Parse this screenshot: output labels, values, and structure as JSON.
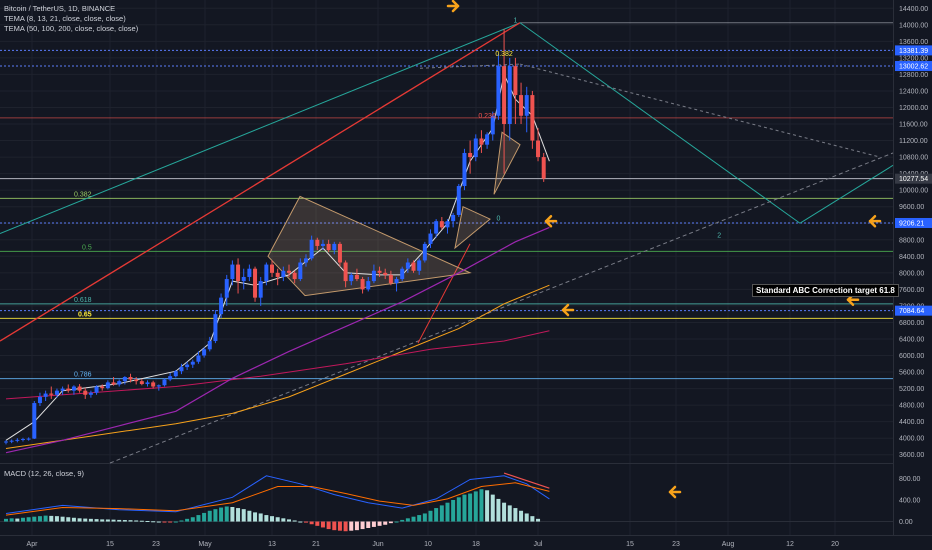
{
  "legends": {
    "title": "Bitcoin / TetherUS, 1D, BINANCE",
    "tema1": "TEMA (8, 13, 21, close, close, close)",
    "tema2": "TEMA (50, 100, 200, close, close, close)",
    "macd": "MACD (12, 26, close, 9)"
  },
  "annotation": "Standard ABC Correction target 61.8",
  "fib_levels": [
    {
      "label": "0.382",
      "price": 9800,
      "color": "#9ccc65"
    },
    {
      "label": "0.5",
      "price": 8520,
      "color": "#4caf50"
    },
    {
      "label": "0.618",
      "price": 7250,
      "color": "#4db6ac"
    },
    {
      "label": "0.65",
      "price": 6900,
      "color": "#ffeb3b"
    },
    {
      "label": "0.786",
      "price": 5440,
      "color": "#64b5f6"
    }
  ],
  "wave_labels": [
    {
      "label": "1",
      "price": 14050,
      "date_index": 90,
      "color": "#4db6ac"
    },
    {
      "label": "2",
      "price": 8850,
      "date_index": 126,
      "color": "#4db6ac"
    },
    {
      "label": "0.382",
      "price": 13250,
      "date_index": 88,
      "color": "#ffeb3b"
    },
    {
      "label": "0.236",
      "price": 11750,
      "date_index": 85,
      "color": "#ef5350"
    },
    {
      "label": "0",
      "price": 9270,
      "date_index": 87,
      "color": "#4db6ac"
    },
    {
      "label": "0.5",
      "price": 14800,
      "date_index": 88,
      "color": "#4caf50"
    }
  ],
  "price_axis": {
    "ticks": [
      "14400.00",
      "14000.00",
      "13600.00",
      "13200.00",
      "12800.00",
      "12400.00",
      "12000.00",
      "11600.00",
      "11200.00",
      "10800.00",
      "10400.00",
      "10000.00",
      "9600.00",
      "9200.00",
      "8800.00",
      "8400.00",
      "8000.00",
      "7600.00",
      "7200.00",
      "6800.00",
      "6400.00",
      "6000.00",
      "5600.00",
      "5200.00",
      "4800.00",
      "4400.00",
      "4000.00",
      "3600.00"
    ],
    "tags": [
      {
        "text": "13381.39",
        "price": 13381,
        "bg": "#2962ff"
      },
      {
        "text": "13002.62",
        "price": 13003,
        "bg": "#2962ff"
      },
      {
        "text": "10277.54",
        "price": 10278,
        "bg": "#363a45"
      },
      {
        "text": "9206.21",
        "price": 9206,
        "bg": "#2962ff"
      },
      {
        "text": "7084.64",
        "price": 7085,
        "bg": "#2962ff"
      }
    ]
  },
  "macd_axis": {
    "ticks": [
      "800.00",
      "400.00",
      "0.00"
    ]
  },
  "time_axis": {
    "ticks": [
      "Apr",
      "15",
      "23",
      "May",
      "13",
      "21",
      "Jun",
      "10",
      "18",
      "Jul",
      "15",
      "23",
      "Aug",
      "12",
      "20"
    ]
  },
  "chart_data": {
    "type": "candlestick",
    "symbol": "BTCUSDT",
    "interval": "1D",
    "exchange": "BINANCE",
    "y_range": [
      3400,
      14600
    ],
    "candles": [
      [
        3900,
        3950,
        3850,
        3920
      ],
      [
        3920,
        3970,
        3880,
        3940
      ],
      [
        3940,
        4000,
        3900,
        3960
      ],
      [
        3960,
        4010,
        3920,
        3980
      ],
      [
        3980,
        4020,
        3940,
        3990
      ],
      [
        3990,
        4900,
        3980,
        4850
      ],
      [
        4850,
        5100,
        4780,
        5000
      ],
      [
        5000,
        5150,
        4900,
        5080
      ],
      [
        5080,
        5250,
        4950,
        5050
      ],
      [
        5050,
        5200,
        4980,
        5150
      ],
      [
        5150,
        5250,
        5050,
        5200
      ],
      [
        5200,
        5300,
        5100,
        5150
      ],
      [
        5150,
        5280,
        5050,
        5250
      ],
      [
        5250,
        5310,
        5100,
        5150
      ],
      [
        5150,
        5220,
        4950,
        5050
      ],
      [
        5050,
        5150,
        4980,
        5100
      ],
      [
        5100,
        5280,
        5050,
        5250
      ],
      [
        5250,
        5300,
        5150,
        5210
      ],
      [
        5210,
        5400,
        5180,
        5350
      ],
      [
        5350,
        5480,
        5270,
        5300
      ],
      [
        5300,
        5420,
        5250,
        5380
      ],
      [
        5380,
        5500,
        5300,
        5480
      ],
      [
        5480,
        5560,
        5350,
        5420
      ],
      [
        5420,
        5480,
        5300,
        5380
      ],
      [
        5380,
        5430,
        5280,
        5310
      ],
      [
        5310,
        5400,
        5250,
        5350
      ],
      [
        5350,
        5390,
        5200,
        5250
      ],
      [
        5250,
        5300,
        5150,
        5280
      ],
      [
        5280,
        5450,
        5250,
        5420
      ],
      [
        5420,
        5580,
        5380,
        5500
      ],
      [
        5500,
        5650,
        5470,
        5620
      ],
      [
        5620,
        5800,
        5550,
        5720
      ],
      [
        5720,
        5850,
        5650,
        5780
      ],
      [
        5780,
        5900,
        5700,
        5850
      ],
      [
        5850,
        6100,
        5800,
        6000
      ],
      [
        6000,
        6200,
        5950,
        6150
      ],
      [
        6150,
        6450,
        6100,
        6350
      ],
      [
        6350,
        7100,
        6300,
        7000
      ],
      [
        7000,
        7500,
        6900,
        7400
      ],
      [
        7400,
        7950,
        7200,
        7850
      ],
      [
        7850,
        8300,
        7700,
        8200
      ],
      [
        8200,
        8350,
        7500,
        7800
      ],
      [
        7800,
        8100,
        7600,
        7900
      ],
      [
        7900,
        8200,
        7800,
        8100
      ],
      [
        8100,
        8150,
        7300,
        7400
      ],
      [
        7400,
        7900,
        7200,
        7800
      ],
      [
        7800,
        8250,
        7700,
        8200
      ],
      [
        8200,
        8300,
        7900,
        8000
      ],
      [
        8000,
        8100,
        7700,
        7900
      ],
      [
        7900,
        8150,
        7800,
        8050
      ],
      [
        8050,
        8200,
        7900,
        8000
      ],
      [
        8000,
        8050,
        7750,
        7850
      ],
      [
        7850,
        8350,
        7800,
        8250
      ],
      [
        8250,
        8450,
        8150,
        8350
      ],
      [
        8350,
        8900,
        8300,
        8800
      ],
      [
        8800,
        8850,
        8550,
        8650
      ],
      [
        8650,
        8800,
        8550,
        8700
      ],
      [
        8700,
        8800,
        8500,
        8550
      ],
      [
        8550,
        8750,
        8450,
        8700
      ],
      [
        8700,
        8750,
        8150,
        8250
      ],
      [
        8250,
        8300,
        7650,
        7800
      ],
      [
        7800,
        8000,
        7700,
        7950
      ],
      [
        7950,
        8100,
        7800,
        7850
      ],
      [
        7850,
        7900,
        7500,
        7600
      ],
      [
        7600,
        7900,
        7550,
        7800
      ],
      [
        7800,
        8200,
        7750,
        8050
      ],
      [
        8050,
        8150,
        7900,
        8000
      ],
      [
        8000,
        8100,
        7850,
        7950
      ],
      [
        7950,
        8050,
        7700,
        7750
      ],
      [
        7750,
        7900,
        7550,
        7850
      ],
      [
        7850,
        8150,
        7800,
        8100
      ],
      [
        8100,
        8350,
        8000,
        8250
      ],
      [
        8250,
        8300,
        8000,
        8050
      ],
      [
        8050,
        8350,
        7950,
        8300
      ],
      [
        8300,
        8750,
        8250,
        8700
      ],
      [
        8700,
        9050,
        8600,
        8950
      ],
      [
        8950,
        9300,
        8850,
        9250
      ],
      [
        9250,
        9350,
        9050,
        9100
      ],
      [
        9100,
        9300,
        8950,
        9250
      ],
      [
        9250,
        9450,
        9100,
        9400
      ],
      [
        9400,
        10150,
        9350,
        10100
      ],
      [
        10100,
        11000,
        10000,
        10900
      ],
      [
        10900,
        11200,
        10400,
        10800
      ],
      [
        10800,
        11350,
        10700,
        11250
      ],
      [
        11250,
        11450,
        10900,
        11100
      ],
      [
        11100,
        11400,
        11000,
        11350
      ],
      [
        11350,
        11900,
        11200,
        11800
      ],
      [
        11800,
        13300,
        11700,
        13000
      ],
      [
        13000,
        13900,
        10400,
        11600
      ],
      [
        11600,
        13200,
        11200,
        13000
      ],
      [
        13000,
        13200,
        11600,
        12300
      ],
      [
        12300,
        12600,
        11600,
        11800
      ],
      [
        11800,
        12500,
        11400,
        12300
      ],
      [
        12300,
        12400,
        11000,
        11200
      ],
      [
        11200,
        11500,
        10700,
        10800
      ],
      [
        10800,
        10900,
        10200,
        10280
      ]
    ],
    "tema_fast": [
      [
        0,
        3950
      ],
      [
        5,
        4400
      ],
      [
        10,
        5150
      ],
      [
        20,
        5320
      ],
      [
        30,
        5620
      ],
      [
        36,
        6300
      ],
      [
        40,
        7800
      ],
      [
        44,
        7700
      ],
      [
        50,
        7950
      ],
      [
        56,
        8600
      ],
      [
        60,
        8000
      ],
      [
        66,
        7950
      ],
      [
        70,
        7950
      ],
      [
        74,
        8550
      ],
      [
        78,
        9200
      ],
      [
        82,
        10700
      ],
      [
        86,
        11500
      ],
      [
        88,
        12800
      ],
      [
        90,
        12200
      ],
      [
        93,
        11800
      ],
      [
        96,
        10700
      ]
    ],
    "tema_slow": [
      [
        0,
        3650
      ],
      [
        10,
        3950
      ],
      [
        20,
        4300
      ],
      [
        30,
        4650
      ],
      [
        40,
        5450
      ],
      [
        50,
        6100
      ],
      [
        60,
        6700
      ],
      [
        70,
        7300
      ],
      [
        80,
        8000
      ],
      [
        90,
        8750
      ],
      [
        96,
        9100
      ]
    ],
    "ma_lines": [
      {
        "name": "orange",
        "color": "#f7a21b",
        "points": [
          [
            0,
            3750
          ],
          [
            15,
            4050
          ],
          [
            30,
            4350
          ],
          [
            40,
            4600
          ],
          [
            50,
            5000
          ],
          [
            60,
            5550
          ],
          [
            70,
            6100
          ],
          [
            80,
            6650
          ],
          [
            88,
            7250
          ],
          [
            96,
            7700
          ]
        ]
      },
      {
        "name": "red",
        "color": "#c2185b",
        "points": [
          [
            0,
            4950
          ],
          [
            15,
            5100
          ],
          [
            30,
            5250
          ],
          [
            45,
            5500
          ],
          [
            60,
            5800
          ],
          [
            75,
            6150
          ],
          [
            88,
            6350
          ],
          [
            96,
            6600
          ]
        ]
      }
    ],
    "macd": {
      "range": [
        -250,
        1050
      ],
      "histogram": [
        50,
        60,
        55,
        70,
        80,
        90,
        100,
        110,
        105,
        100,
        90,
        80,
        70,
        60,
        55,
        50,
        45,
        40,
        38,
        35,
        30,
        28,
        25,
        20,
        15,
        10,
        5,
        0,
        -5,
        -10,
        0,
        20,
        50,
        80,
        120,
        160,
        200,
        230,
        260,
        280,
        270,
        250,
        230,
        200,
        170,
        150,
        120,
        100,
        80,
        60,
        40,
        20,
        0,
        -20,
        -50,
        -80,
        -110,
        -140,
        -160,
        -170,
        -180,
        -170,
        -160,
        -140,
        -120,
        -100,
        -80,
        -60,
        -30,
        0,
        30,
        60,
        90,
        120,
        150,
        200,
        250,
        300,
        350,
        400,
        450,
        500,
        520,
        560,
        600,
        580,
        500,
        420,
        350,
        300,
        250,
        200,
        150,
        100,
        50
      ],
      "macd_line": [
        [
          0,
          150
        ],
        [
          10,
          300
        ],
        [
          20,
          220
        ],
        [
          30,
          180
        ],
        [
          40,
          450
        ],
        [
          46,
          850
        ],
        [
          52,
          700
        ],
        [
          58,
          500
        ],
        [
          64,
          350
        ],
        [
          70,
          250
        ],
        [
          76,
          420
        ],
        [
          82,
          780
        ],
        [
          88,
          850
        ],
        [
          92,
          700
        ],
        [
          96,
          420
        ]
      ],
      "signal_line": [
        [
          0,
          120
        ],
        [
          10,
          260
        ],
        [
          20,
          240
        ],
        [
          30,
          200
        ],
        [
          40,
          350
        ],
        [
          48,
          650
        ],
        [
          54,
          650
        ],
        [
          60,
          520
        ],
        [
          66,
          380
        ],
        [
          72,
          300
        ],
        [
          78,
          420
        ],
        [
          84,
          650
        ],
        [
          90,
          720
        ],
        [
          96,
          560
        ]
      ]
    }
  }
}
